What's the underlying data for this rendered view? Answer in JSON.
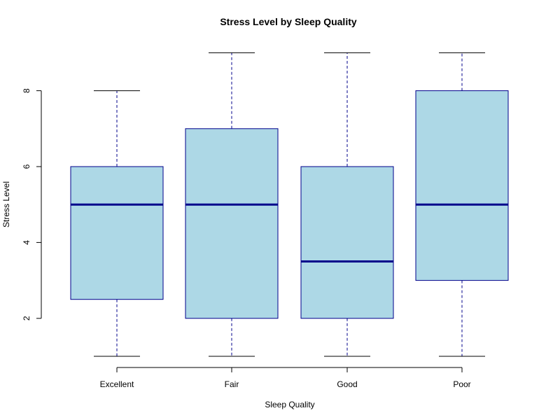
{
  "chart_data": {
    "type": "boxplot",
    "title": "Stress Level by Sleep Quality",
    "xlabel": "Sleep Quality",
    "ylabel": "Stress Level",
    "categories": [
      "Excellent",
      "Fair",
      "Good",
      "Poor"
    ],
    "boxes": [
      {
        "category": "Excellent",
        "min": 1,
        "q1": 2.5,
        "median": 5,
        "q3": 6,
        "max": 8
      },
      {
        "category": "Fair",
        "min": 1,
        "q1": 2,
        "median": 5,
        "q3": 7,
        "max": 9
      },
      {
        "category": "Good",
        "min": 1,
        "q1": 2,
        "median": 3.5,
        "q3": 6,
        "max": 9
      },
      {
        "category": "Poor",
        "min": 1,
        "q1": 3,
        "median": 5,
        "q3": 8,
        "max": 9
      }
    ],
    "yticks": [
      2,
      4,
      6,
      8
    ],
    "ylim": [
      1,
      9
    ],
    "grid": false,
    "colors": {
      "box_fill": "#add8e6",
      "box_border": "#00008b",
      "median": "#00008b",
      "whisker": "#00008b",
      "axis": "#000000"
    }
  }
}
